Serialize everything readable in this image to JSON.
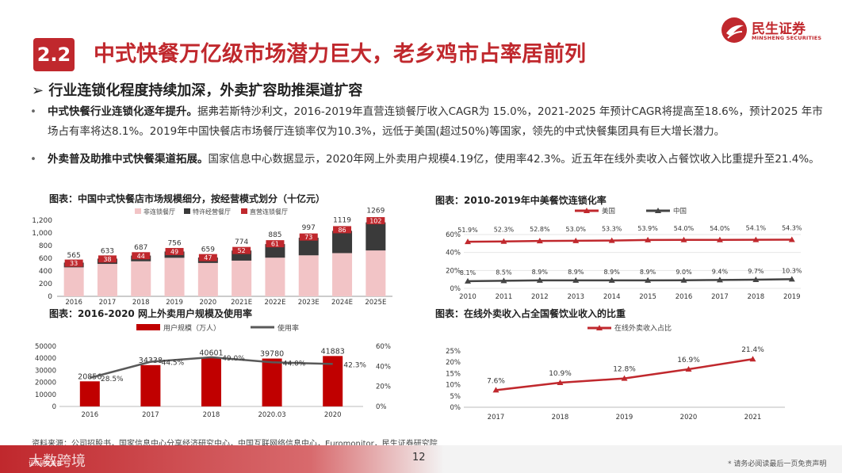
{
  "header": {
    "section_number": "2.2",
    "title": "中式快餐万亿级市场潜力巨大，老乡鸡市占率居前列",
    "logo_cn": "民生证券",
    "logo_en": "MINSHENG SECURITIES"
  },
  "subhead": "➢ 行业连锁化程度持续加深，外卖扩容助推渠道扩容",
  "bullets": [
    {
      "bold": "中式快餐行业连锁化逐年提升。",
      "text": "据弗若斯特沙利文，2016-2019年直营连锁餐厅收入CAGR为 15.0%，2021-2025 年预计CAGR将提高至18.6%，预计2025 年市场占有率将达8.1%。2019年中国快餐店市场餐厅连锁率仅为10.3%，远低于美国(超过50%)等国家，领先的中式快餐集团具有巨大增长潜力。"
    },
    {
      "bold": "外卖普及助推中式快餐渠道拓展。",
      "text": "国家信息中心数据显示，2020年网上外卖用户规模4.19亿，使用率42.3%。近五年在线外卖收入占餐饮收入比重提升至21.4%。"
    }
  ],
  "chart_titles": {
    "c1": "图表：中国中式快餐店市场规模细分，按经营模式划分（十亿元）",
    "c2": "图表：2010-2019年中美餐饮连锁化率",
    "c3": "图表：2016-2020 网上外卖用户规模及使用率",
    "c4": "图表：在线外卖收入占全国餐饮业收入的比重"
  },
  "chart_data": [
    {
      "type": "bar",
      "stacked": true,
      "categories": [
        "2016",
        "2017",
        "2018",
        "2019",
        "2020",
        "2021E",
        "2022E",
        "2023E",
        "2024E",
        "2025E"
      ],
      "series": [
        {
          "name": "非连锁餐厅",
          "color": "#f2c4c6"
        },
        {
          "name": "特许经营餐厅",
          "color": "#3a3a3a"
        },
        {
          "name": "直营连锁餐厅",
          "color": "#c0282d",
          "values": [
            33,
            38,
            44,
            49,
            47,
            52,
            61,
            73,
            86,
            102
          ]
        }
      ],
      "totals": [
        565,
        633,
        687,
        756,
        659,
        774,
        885,
        997,
        1119,
        1269
      ],
      "yticks": [
        "1,200",
        "1,000",
        "800",
        "600",
        "400",
        "200",
        "0"
      ],
      "ylim": [
        0,
        1200
      ]
    },
    {
      "type": "line",
      "categories": [
        "2010",
        "2011",
        "2012",
        "2013",
        "2014",
        "2015",
        "2016",
        "2017",
        "2018",
        "2019"
      ],
      "series": [
        {
          "name": "美国",
          "color": "#c0282d",
          "values": [
            51.9,
            52.3,
            52.8,
            53.0,
            53.3,
            53.9,
            54.0,
            54.0,
            54.1,
            54.3
          ],
          "labels": [
            "51.9%",
            "52.3%",
            "52.8%",
            "53.0%",
            "53.3%",
            "53.9%",
            "54.0%",
            "54.0%",
            "54.1%",
            "54.3%"
          ]
        },
        {
          "name": "中国",
          "color": "#444444",
          "values": [
            8.1,
            8.5,
            8.9,
            8.9,
            8.9,
            8.9,
            9.0,
            9.4,
            9.7,
            10.3
          ],
          "labels": [
            "8.1%",
            "8.5%",
            "8.9%",
            "8.9%",
            "8.9%",
            "8.9%",
            "9.0%",
            "9.4%",
            "9.7%",
            "10.3%"
          ]
        }
      ],
      "yticks": [
        "60%",
        "40%",
        "20%",
        "0%"
      ],
      "ylim": [
        0,
        60
      ]
    },
    {
      "type": "bar",
      "categories": [
        "2016",
        "2017",
        "2018",
        "2020.03",
        "2020"
      ],
      "series": [
        {
          "name": "用户规模（万人）",
          "color": "#c00000",
          "values": [
            20856,
            34338,
            40601,
            39780,
            41883
          ],
          "labels": [
            "20856",
            "34338",
            "40601",
            "39780",
            "41883"
          ]
        },
        {
          "name": "使用率",
          "color": "#595959",
          "axis": "right",
          "values": [
            28.5,
            44.5,
            49.0,
            44.0,
            42.3
          ],
          "labels": [
            "28.5%",
            "44.5%",
            "49.0%",
            "44.0%",
            "42.3%"
          ]
        }
      ],
      "yticks_left": [
        "50000",
        "40000",
        "30000",
        "20000",
        "10000",
        "0"
      ],
      "yticks_right": [
        "60%",
        "40%",
        "20%",
        "0%"
      ],
      "ylim": [
        0,
        50000
      ],
      "ylim_right": [
        0,
        60
      ]
    },
    {
      "type": "line",
      "categories": [
        "2017",
        "2018",
        "2019",
        "2020",
        "2021"
      ],
      "series": [
        {
          "name": "在线外卖收入占比",
          "color": "#c0282d",
          "values": [
            7.6,
            10.9,
            12.8,
            16.9,
            21.4
          ],
          "labels": [
            "7.6%",
            "10.9%",
            "12.8%",
            "16.9%",
            "21.4%"
          ]
        }
      ],
      "yticks": [
        "25%",
        "20%",
        "15%",
        "10%",
        "5%",
        "0%"
      ],
      "ylim": [
        0,
        25
      ]
    }
  ],
  "source": "资料来源：公司招股书，国家信息中心分享经济研究中心，中国互联网络信息中心，Euromonitor，民生证券研究院",
  "footer": {
    "brand": "大数跨境",
    "brand_small": "证券研究报告",
    "page_number": "12",
    "disclaimer": "* 请务必阅读最后一页免责声明"
  }
}
